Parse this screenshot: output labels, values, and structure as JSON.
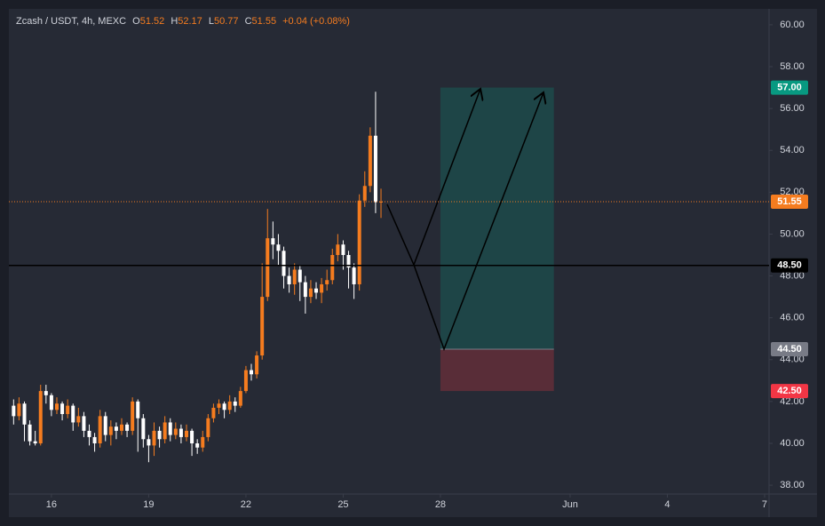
{
  "chart_data": {
    "type": "candlestick",
    "symbol": "Zcash / USDT, 4h, MEXC",
    "ohlc_letters": [
      "O",
      "H",
      "L",
      "C"
    ],
    "change": "+0.04 (+0.08%)",
    "up_color": "#f57c1f",
    "down_color": "#ffffff",
    "xlim": [
      -31.5,
      531.3
    ],
    "ylim": [
      37.58,
      60.76
    ],
    "xticks": [
      {
        "value": 0,
        "label": "16"
      },
      {
        "value": 72,
        "label": "19"
      },
      {
        "value": 144,
        "label": "22"
      },
      {
        "value": 216,
        "label": "25"
      },
      {
        "value": 288,
        "label": "28"
      },
      {
        "value": 384,
        "label": "Jun"
      },
      {
        "value": 456,
        "label": "4"
      },
      {
        "value": 528,
        "label": "7"
      }
    ],
    "yticks": [
      {
        "value": 38,
        "label": "38.00"
      },
      {
        "value": 40,
        "label": "40.00"
      },
      {
        "value": 42,
        "label": "42.00"
      },
      {
        "value": 44,
        "label": "44.00"
      },
      {
        "value": 46,
        "label": "46.00"
      },
      {
        "value": 48,
        "label": "48.00"
      },
      {
        "value": 50,
        "label": "50.00"
      },
      {
        "value": 52,
        "label": "52.00"
      },
      {
        "value": 54,
        "label": "54.00"
      },
      {
        "value": 56,
        "label": "56.00"
      },
      {
        "value": 58,
        "label": "58.00"
      },
      {
        "value": 60,
        "label": "60.00"
      }
    ],
    "candles": {
      "x": [
        -28,
        -24,
        -20,
        -16,
        -12,
        -8,
        -4,
        0,
        4,
        8,
        12,
        16,
        20,
        24,
        28,
        32,
        36,
        40,
        44,
        48,
        52,
        56,
        60,
        64,
        68,
        72,
        76,
        80,
        84,
        88,
        92,
        96,
        100,
        104,
        108,
        112,
        116,
        120,
        124,
        128,
        132,
        136,
        140,
        144,
        148,
        152,
        156,
        160,
        164,
        168,
        172,
        176,
        180,
        184,
        188,
        192,
        196,
        200,
        204,
        208,
        212,
        216,
        220,
        224,
        228,
        232,
        236,
        240,
        244
      ],
      "open": [
        41.8,
        41.3,
        41.9,
        40.9,
        40.1,
        40.0,
        42.5,
        42.3,
        41.6,
        41.9,
        41.4,
        41.8,
        41.0,
        41.3,
        40.6,
        40.3,
        40.0,
        41.3,
        40.4,
        40.8,
        40.6,
        40.9,
        40.6,
        42.0,
        41.2,
        40.2,
        39.9,
        40.6,
        40.2,
        41.0,
        40.4,
        40.7,
        40.3,
        40.6,
        40.0,
        39.8,
        40.3,
        41.2,
        41.7,
        41.9,
        41.6,
        42.0,
        41.8,
        42.5,
        43.5,
        43.3,
        44.2,
        47.0,
        49.8,
        49.5,
        49.2,
        48.0,
        47.6,
        48.3,
        47.7,
        47.0,
        47.4,
        47.2,
        47.6,
        47.8,
        49.0,
        49.5,
        49.0,
        48.4,
        47.6,
        51.6,
        52.3,
        54.7,
        51.52
      ],
      "high": [
        42.1,
        42.2,
        42.0,
        41.1,
        40.6,
        42.8,
        42.8,
        42.4,
        42.2,
        42.0,
        42.1,
        41.9,
        41.7,
        41.5,
        40.9,
        40.5,
        41.6,
        41.5,
        41.1,
        41.0,
        41.2,
        41.0,
        42.2,
        42.1,
        41.4,
        40.4,
        41.0,
        40.8,
        41.3,
        41.2,
        41.0,
        40.9,
        40.9,
        40.7,
        40.2,
        40.6,
        41.4,
        41.9,
        42.1,
        42.0,
        42.3,
        42.2,
        42.7,
        43.7,
        43.8,
        44.4,
        48.6,
        51.2,
        50.6,
        50.0,
        49.4,
        48.4,
        48.6,
        48.5,
        48.0,
        47.8,
        47.7,
        47.9,
        48.3,
        49.3,
        50.0,
        49.7,
        49.2,
        48.6,
        51.9,
        53.0,
        55.1,
        56.8,
        52.17
      ],
      "low": [
        40.9,
        41.1,
        40.1,
        39.9,
        39.9,
        39.9,
        41.9,
        41.3,
        41.4,
        41.1,
        41.2,
        40.6,
        40.8,
        40.3,
        39.9,
        39.6,
        39.8,
        40.1,
        39.9,
        40.2,
        40.4,
        40.3,
        40.4,
        39.6,
        39.8,
        39.1,
        39.4,
        39.8,
        40.0,
        40.1,
        40.2,
        40.0,
        40.1,
        39.4,
        39.5,
        39.6,
        40.1,
        41.0,
        41.4,
        41.2,
        41.4,
        41.5,
        41.7,
        42.4,
        43.0,
        43.1,
        44.0,
        46.8,
        48.8,
        48.5,
        47.4,
        47.2,
        47.1,
        46.8,
        46.2,
        46.7,
        46.9,
        46.7,
        47.3,
        47.6,
        48.7,
        48.3,
        47.4,
        46.9,
        47.3,
        51.3,
        52.0,
        51.0,
        50.77
      ],
      "close": [
        41.3,
        41.9,
        40.9,
        40.1,
        40.0,
        42.5,
        42.3,
        41.6,
        41.9,
        41.4,
        41.8,
        41.0,
        41.3,
        40.6,
        40.3,
        40.0,
        41.3,
        40.4,
        40.8,
        40.6,
        40.9,
        40.6,
        42.0,
        41.2,
        40.2,
        39.9,
        40.6,
        40.2,
        41.0,
        40.4,
        40.7,
        40.3,
        40.6,
        40.0,
        39.8,
        40.3,
        41.2,
        41.7,
        41.9,
        41.6,
        42.0,
        41.8,
        42.5,
        43.5,
        43.3,
        44.2,
        47.0,
        49.8,
        49.5,
        49.2,
        48.0,
        47.6,
        48.3,
        47.7,
        47.0,
        47.4,
        47.2,
        47.6,
        47.8,
        49.0,
        49.5,
        49.0,
        48.4,
        47.6,
        51.6,
        52.3,
        54.7,
        51.52,
        51.55
      ]
    },
    "horizontal_line": {
      "value": 48.5,
      "label": "48.50",
      "color": "#000000"
    },
    "position": {
      "start": 288,
      "end": 372,
      "target": {
        "value": 57,
        "label": "57.00"
      },
      "entry": {
        "value": 44.5,
        "label": "44.50"
      },
      "stop": {
        "value": 42.5,
        "label": "42.50"
      },
      "profit_color": "#089981",
      "loss_color": "#f23645",
      "entry_color": "#787b86"
    }
  }
}
